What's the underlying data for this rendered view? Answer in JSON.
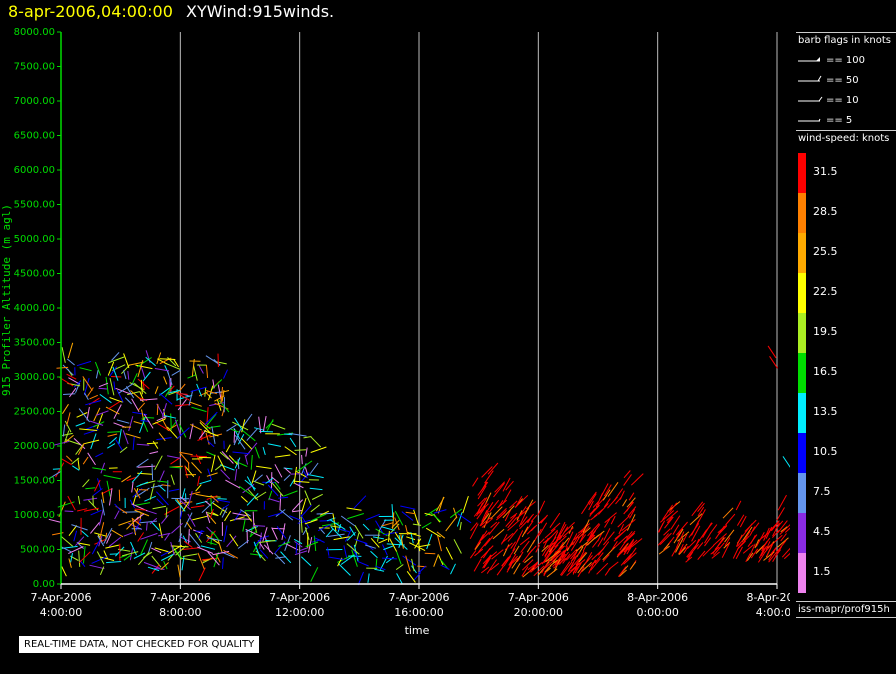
{
  "header": {
    "timestamp": "8-apr-2006,04:00:00",
    "title": "XYWind:915winds."
  },
  "legend": {
    "barb_title": "barb flags in knots",
    "barbs": [
      {
        "label": "== 100",
        "value": 100
      },
      {
        "label": "== 50",
        "value": 50
      },
      {
        "label": "== 10",
        "value": 10
      },
      {
        "label": "== 5",
        "value": 5
      }
    ],
    "speed_title": "wind-speed: knots",
    "speed_bins": [
      {
        "label": "31.5",
        "color": "#ff0000"
      },
      {
        "label": "28.5",
        "color": "#ff8000"
      },
      {
        "label": "25.5",
        "color": "#ffaa00"
      },
      {
        "label": "22.5",
        "color": "#ffff00"
      },
      {
        "label": "19.5",
        "color": "#aaee22"
      },
      {
        "label": "16.5",
        "color": "#00dd00"
      },
      {
        "label": "13.5",
        "color": "#00eeff"
      },
      {
        "label": "10.5",
        "color": "#0000ff"
      },
      {
        "label": "7.5",
        "color": "#6495ed"
      },
      {
        "label": "4.5",
        "color": "#8a2be2"
      },
      {
        "label": "1.5",
        "color": "#ee82ee"
      }
    ]
  },
  "footer_path": "iss-mapr/prof915h",
  "quality_note": "REAL-TIME DATA, NOT CHECKED FOR QUALITY",
  "chart_data": {
    "type": "scatter",
    "title": "XYWind:915winds.",
    "ylabel": "915 Profiler Altitude (m agl)",
    "xlabel": "time",
    "ylim": [
      0,
      8000
    ],
    "yticks": [
      "0.00",
      "500.00",
      "1000.00",
      "1500.00",
      "2000.00",
      "2500.00",
      "3000.00",
      "3500.00",
      "4000.00",
      "4500.00",
      "5000.00",
      "5500.00",
      "6000.00",
      "6500.00",
      "7000.00",
      "7500.00",
      "8000.00"
    ],
    "xlim_hours": [
      4,
      28
    ],
    "xticks": [
      {
        "hour": 4,
        "date": "7-Apr-2006",
        "time": "4:00:00"
      },
      {
        "hour": 8,
        "date": "7-Apr-2006",
        "time": "8:00:00"
      },
      {
        "hour": 12,
        "date": "7-Apr-2006",
        "time": "12:00:00"
      },
      {
        "hour": 16,
        "date": "7-Apr-2006",
        "time": "16:00:00"
      },
      {
        "hour": 20,
        "date": "7-Apr-2006",
        "time": "20:00:00"
      },
      {
        "hour": 24,
        "date": "8-Apr-2006",
        "time": "0:00:00"
      },
      {
        "hour": 28,
        "date": "8-Apr-2006",
        "time": "4:00:00"
      }
    ],
    "grid": "vertical",
    "wind_regions": [
      {
        "t0": 4.0,
        "t1": 9.5,
        "h0": 200,
        "h1": 3300,
        "speed": "mixed"
      },
      {
        "t0": 9.5,
        "t1": 12.5,
        "h0": 300,
        "h1": 2300,
        "speed": "mixed-low"
      },
      {
        "t0": 12.5,
        "t1": 15.0,
        "h0": 150,
        "h1": 1100,
        "speed": "low-mid"
      },
      {
        "t0": 15.0,
        "t1": 17.5,
        "h0": 150,
        "h1": 1100,
        "speed": "mid"
      },
      {
        "t0": 17.7,
        "t1": 23.2,
        "h0": 100,
        "h1": 1650,
        "speed": "high"
      },
      {
        "t0": 24.0,
        "t1": 25.4,
        "h0": 300,
        "h1": 1250,
        "speed": "high"
      },
      {
        "t0": 25.5,
        "t1": 26.3,
        "h0": 350,
        "h1": 1100,
        "speed": "high"
      },
      {
        "t0": 26.5,
        "t1": 28.3,
        "h0": 300,
        "h1": 1250,
        "speed": "high"
      }
    ]
  }
}
